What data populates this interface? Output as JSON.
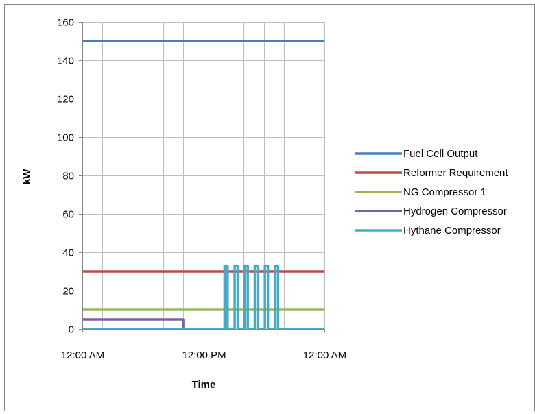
{
  "chart_data": {
    "type": "line",
    "title": "",
    "xlabel": "Time",
    "ylabel": "kW",
    "x_unit": "hours",
    "xlim": [
      0,
      24
    ],
    "ylim": [
      0,
      160
    ],
    "y_ticks": [
      0,
      20,
      40,
      60,
      80,
      100,
      120,
      140,
      160
    ],
    "x_ticks": [
      {
        "value": 0,
        "label": "12:00 AM"
      },
      {
        "value": 12,
        "label": "12:00 PM"
      },
      {
        "value": 24,
        "label": "12:00 AM"
      }
    ],
    "x_gridlines": [
      0,
      2,
      4,
      6,
      8,
      10,
      12,
      14,
      16,
      18,
      20,
      22,
      24
    ],
    "grid": true,
    "legend_position": "right",
    "series": [
      {
        "name": "Fuel Cell Output",
        "color": "#4A7EBB",
        "points": [
          [
            0,
            150
          ],
          [
            24,
            150
          ]
        ]
      },
      {
        "name": "Reformer Requirement",
        "color": "#BE4B48",
        "points": [
          [
            0,
            30
          ],
          [
            24,
            30
          ]
        ]
      },
      {
        "name": "NG Compressor 1",
        "color": "#98B954",
        "points": [
          [
            0,
            10
          ],
          [
            24,
            10
          ]
        ]
      },
      {
        "name": "Hydrogen Compressor",
        "color": "#7D60A0",
        "points": [
          [
            0,
            5
          ],
          [
            10,
            5
          ],
          [
            10,
            0
          ]
        ]
      },
      {
        "name": "Hythane Compressor",
        "color": "#46AAC5",
        "points": [
          [
            0,
            0
          ],
          [
            14.1,
            0
          ],
          [
            14.1,
            33
          ],
          [
            14.4,
            33
          ],
          [
            14.4,
            0
          ],
          [
            15.1,
            0
          ],
          [
            15.1,
            33
          ],
          [
            15.4,
            33
          ],
          [
            15.4,
            0
          ],
          [
            16.1,
            0
          ],
          [
            16.1,
            33
          ],
          [
            16.4,
            33
          ],
          [
            16.4,
            0
          ],
          [
            17.1,
            0
          ],
          [
            17.1,
            33
          ],
          [
            17.4,
            33
          ],
          [
            17.4,
            0
          ],
          [
            18.1,
            0
          ],
          [
            18.1,
            33
          ],
          [
            18.4,
            33
          ],
          [
            18.4,
            0
          ],
          [
            19.1,
            0
          ],
          [
            19.1,
            33
          ],
          [
            19.4,
            33
          ],
          [
            19.4,
            0
          ],
          [
            24,
            0
          ]
        ]
      }
    ]
  }
}
